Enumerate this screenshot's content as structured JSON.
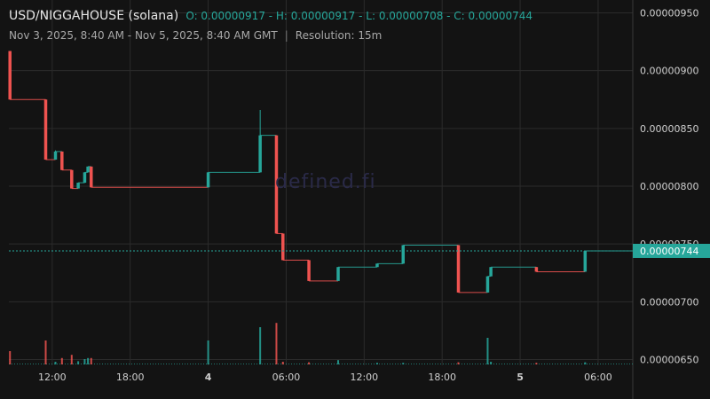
{
  "header": {
    "pair": "USD/NIGGAHOUSE (solana)",
    "ohlc": "O: 0.00000917 - H: 0.00000917 - L: 0.00000708 - C: 0.00000744",
    "range": "Nov 3, 2025, 8:40 AM - Nov 5, 2025, 8:40 AM GMT",
    "separator": "|",
    "resolution": "Resolution: 15m"
  },
  "watermark": "defined.fi",
  "colors": {
    "up": "#26a69a",
    "down": "#ef5350",
    "background": "#131313",
    "grid": "#2b2b2b"
  },
  "chart_data": {
    "type": "candlestick",
    "grid": true,
    "y_axis_position": "right",
    "ylim": [
      6.45e-06,
      9.55e-06
    ],
    "y_ticks": [
      9.5e-06,
      9e-06,
      8.5e-06,
      8e-06,
      7.5e-06,
      7e-06,
      6.5e-06
    ],
    "y_tick_labels": [
      "0.00000950",
      "0.00000900",
      "0.00000850",
      "0.00000800",
      "0.00000750",
      "0.00000700",
      "0.00000650"
    ],
    "x_ticks": [
      {
        "time": "2025-11-03 12:00",
        "label": "12:00",
        "bold": false
      },
      {
        "time": "2025-11-03 18:00",
        "label": "18:00",
        "bold": false
      },
      {
        "time": "2025-11-04 00:00",
        "label": "4",
        "bold": true
      },
      {
        "time": "2025-11-04 06:00",
        "label": "06:00",
        "bold": false
      },
      {
        "time": "2025-11-04 12:00",
        "label": "12:00",
        "bold": false
      },
      {
        "time": "2025-11-04 18:00",
        "label": "18:00",
        "bold": false
      },
      {
        "time": "2025-11-05 00:00",
        "label": "5",
        "bold": true
      },
      {
        "time": "2025-11-05 06:00",
        "label": "06:00",
        "bold": false
      }
    ],
    "last_price": 7.44e-06,
    "last_price_label": "0.00000744",
    "candles": [
      {
        "t": "2025-11-03 08:45",
        "o": 9.17e-06,
        "h": 9.17e-06,
        "l": 8.75e-06,
        "c": 8.75e-06,
        "v": 0.25
      },
      {
        "t": "2025-11-03 11:30",
        "o": 8.75e-06,
        "h": 8.75e-06,
        "l": 8.23e-06,
        "c": 8.23e-06,
        "v": 0.45
      },
      {
        "t": "2025-11-03 12:15",
        "o": 8.23e-06,
        "h": 8.31e-06,
        "l": 8.23e-06,
        "c": 8.3e-06,
        "v": 0.05
      },
      {
        "t": "2025-11-03 12:45",
        "o": 8.3e-06,
        "h": 8.3e-06,
        "l": 8.14e-06,
        "c": 8.14e-06,
        "v": 0.12
      },
      {
        "t": "2025-11-03 13:30",
        "o": 8.14e-06,
        "h": 8.14e-06,
        "l": 7.98e-06,
        "c": 7.98e-06,
        "v": 0.18
      },
      {
        "t": "2025-11-03 14:00",
        "o": 7.98e-06,
        "h": 8.03e-06,
        "l": 7.98e-06,
        "c": 8.03e-06,
        "v": 0.06
      },
      {
        "t": "2025-11-03 14:30",
        "o": 8.03e-06,
        "h": 8.12e-06,
        "l": 8.03e-06,
        "c": 8.12e-06,
        "v": 0.1
      },
      {
        "t": "2025-11-03 14:45",
        "o": 8.12e-06,
        "h": 8.17e-06,
        "l": 8.12e-06,
        "c": 8.17e-06,
        "v": 0.12
      },
      {
        "t": "2025-11-03 15:00",
        "o": 8.17e-06,
        "h": 8.17e-06,
        "l": 7.99e-06,
        "c": 7.99e-06,
        "v": 0.12
      },
      {
        "t": "2025-11-04 00:00",
        "o": 7.99e-06,
        "h": 8.12e-06,
        "l": 7.99e-06,
        "c": 8.12e-06,
        "v": 0.45
      },
      {
        "t": "2025-11-04 04:00",
        "o": 8.12e-06,
        "h": 8.66e-06,
        "l": 8.12e-06,
        "c": 8.44e-06,
        "v": 0.7
      },
      {
        "t": "2025-11-04 05:15",
        "o": 8.44e-06,
        "h": 8.44e-06,
        "l": 7.59e-06,
        "c": 7.59e-06,
        "v": 0.78
      },
      {
        "t": "2025-11-04 05:45",
        "o": 7.59e-06,
        "h": 7.59e-06,
        "l": 7.36e-06,
        "c": 7.36e-06,
        "v": 0.05
      },
      {
        "t": "2025-11-04 07:45",
        "o": 7.36e-06,
        "h": 7.36e-06,
        "l": 7.18e-06,
        "c": 7.18e-06,
        "v": 0.04
      },
      {
        "t": "2025-11-04 10:00",
        "o": 7.18e-06,
        "h": 7.3e-06,
        "l": 7.18e-06,
        "c": 7.3e-06,
        "v": 0.08
      },
      {
        "t": "2025-11-04 13:00",
        "o": 7.3e-06,
        "h": 7.33e-06,
        "l": 7.3e-06,
        "c": 7.33e-06,
        "v": 0.03
      },
      {
        "t": "2025-11-04 15:00",
        "o": 7.33e-06,
        "h": 7.49e-06,
        "l": 7.33e-06,
        "c": 7.49e-06,
        "v": 0.03
      },
      {
        "t": "2025-11-04 19:15",
        "o": 7.49e-06,
        "h": 7.49e-06,
        "l": 7.08e-06,
        "c": 7.08e-06,
        "v": 0.04
      },
      {
        "t": "2025-11-04 21:30",
        "o": 7.08e-06,
        "h": 7.22e-06,
        "l": 7.08e-06,
        "c": 7.22e-06,
        "v": 0.5
      },
      {
        "t": "2025-11-04 21:45",
        "o": 7.22e-06,
        "h": 7.3e-06,
        "l": 7.22e-06,
        "c": 7.3e-06,
        "v": 0.05
      },
      {
        "t": "2025-11-05 01:15",
        "o": 7.3e-06,
        "h": 7.3e-06,
        "l": 7.26e-06,
        "c": 7.26e-06,
        "v": 0.03
      },
      {
        "t": "2025-11-05 05:00",
        "o": 7.26e-06,
        "h": 7.44e-06,
        "l": 7.26e-06,
        "c": 7.44e-06,
        "v": 0.04
      }
    ],
    "series_end": "2025-11-05 08:40"
  }
}
